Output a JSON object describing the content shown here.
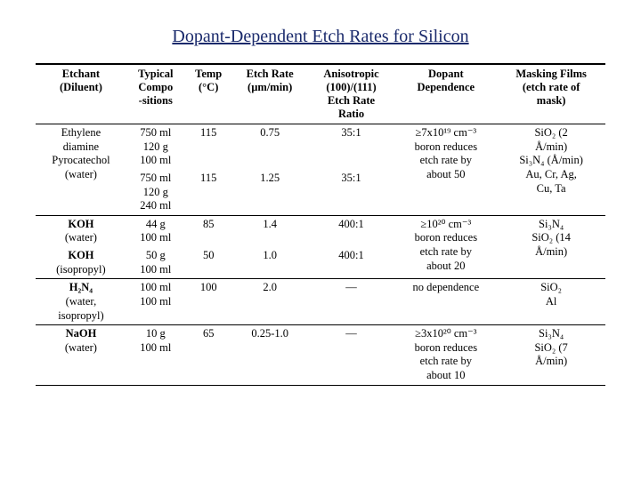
{
  "title": "Dopant-Dependent Etch Rates for Silicon",
  "title_color": "#1a2a6c",
  "background_color": "#ffffff",
  "font_family": "Times New Roman",
  "columns": [
    "Etchant (Diluent)",
    "Typical Compo -sitions",
    "Temp (°C)",
    "Etch Rate (µm/min)",
    "Anisotropic (100)/(111) Etch Rate Ratio",
    "Dopant Dependence",
    "Masking Films (etch rate of mask)"
  ],
  "header_lines": {
    "c0": [
      "Etchant",
      "(Diluent)"
    ],
    "c1": [
      "Typical",
      "Compo",
      "-sitions"
    ],
    "c2": [
      "Temp",
      "(°C)"
    ],
    "c3": [
      "Etch Rate",
      "(µm/min)"
    ],
    "c4": [
      "Anisotropic",
      "(100)/(111)",
      "Etch Rate",
      "Ratio"
    ],
    "c5": [
      "Dopant",
      "Dependence"
    ],
    "c6": [
      "Masking Films",
      "(etch rate of",
      "mask)"
    ]
  },
  "groups": [
    {
      "etchant_lines": [
        "Ethylene",
        "diamine",
        "Pyrocatechol",
        "(water)"
      ],
      "rows": [
        {
          "compo_lines": [
            "750 ml",
            "120 g",
            "100 ml"
          ],
          "temp": "115",
          "etch_rate": "0.75",
          "aniso": "35:1",
          "dopant_lines": [
            "≥7x10¹⁹ cm⁻³",
            "boron reduces",
            "etch rate by",
            "about 50"
          ],
          "mask_lines": [
            "SiO₂ (2",
            "Å/min)",
            "Si₃N₄ (Å/min)",
            "Au, Cr, Ag,",
            "Cu, Ta"
          ]
        },
        {
          "compo_lines": [
            "750 ml",
            "120 g",
            "240 ml"
          ],
          "temp": "115",
          "etch_rate": "1.25",
          "aniso": "35:1",
          "dopant_lines": [],
          "mask_lines": []
        }
      ]
    },
    {
      "etchant_lines": [
        "KOH",
        "(water)"
      ],
      "rows": [
        {
          "compo_lines": [
            "44 g",
            "100 ml"
          ],
          "temp": "85",
          "etch_rate": "1.4",
          "aniso": "400:1",
          "dopant_lines": [
            "≥10²⁰ cm⁻³",
            "boron reduces",
            "etch rate by",
            "about 20"
          ],
          "mask_lines": [
            "Si₃N₄",
            "SiO₂ (14",
            "Å/min)"
          ]
        }
      ]
    },
    {
      "etchant_lines": [
        "KOH",
        "(isopropyl)"
      ],
      "rows": [
        {
          "compo_lines": [
            "50 g",
            "100 ml"
          ],
          "temp": "50",
          "etch_rate": "1.0",
          "aniso": "400:1",
          "dopant_lines": [],
          "mask_lines": []
        }
      ]
    },
    {
      "etchant_lines": [
        "H₂N₄",
        "(water,",
        "isopropyl)"
      ],
      "rows": [
        {
          "compo_lines": [
            "100 ml",
            "100 ml"
          ],
          "temp": "100",
          "etch_rate": "2.0",
          "aniso": "—",
          "dopant_lines": [
            "no dependence"
          ],
          "mask_lines": [
            "SiO₂",
            "Al"
          ]
        }
      ]
    },
    {
      "etchant_lines": [
        "NaOH",
        "(water)"
      ],
      "rows": [
        {
          "compo_lines": [
            "10 g",
            "100 ml"
          ],
          "temp": "65",
          "etch_rate": "0.25-1.0",
          "aniso": "—",
          "dopant_lines": [
            "≥3x10²⁰ cm⁻³",
            "boron reduces",
            "etch rate by",
            "about 10"
          ],
          "mask_lines": [
            "Si₃N₄",
            "SiO₂ (7",
            "Å/min)"
          ]
        }
      ]
    }
  ]
}
